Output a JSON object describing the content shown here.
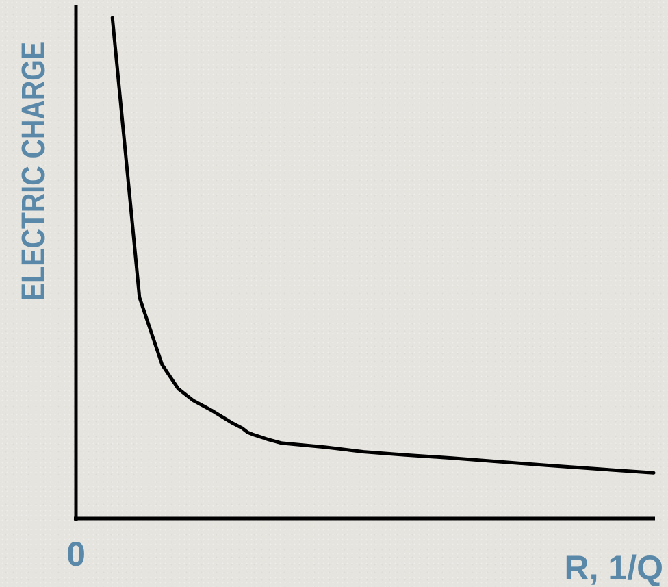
{
  "chart_data": {
    "type": "line",
    "title": "",
    "xlabel": "R, 1/Q",
    "ylabel": "ELECTRIC CHARGE",
    "origin_label": "0",
    "xlim": [
      0,
      1
    ],
    "ylim": [
      0,
      1
    ],
    "grid": false,
    "legend": "none",
    "line_color": "#000000",
    "label_color": "#5a88a8",
    "series": [
      {
        "x": [
          0.063,
          0.11,
          0.149,
          0.177,
          0.203,
          0.236,
          0.271,
          0.288,
          0.297,
          0.306,
          0.333,
          0.356,
          0.432,
          0.498,
          0.568,
          0.649,
          0.73,
          0.812,
          0.898,
          1.0
        ],
        "y": [
          0.976,
          0.431,
          0.3,
          0.253,
          0.23,
          0.21,
          0.186,
          0.176,
          0.168,
          0.164,
          0.154,
          0.147,
          0.139,
          0.13,
          0.124,
          0.118,
          0.111,
          0.104,
          0.097,
          0.089
        ]
      }
    ]
  }
}
